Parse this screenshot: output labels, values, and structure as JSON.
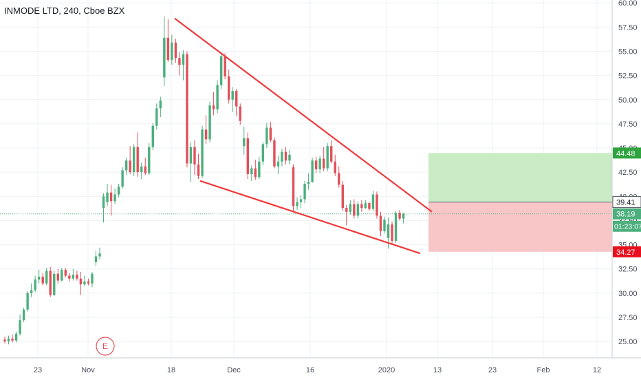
{
  "header": {
    "symbol_title": "INMODE LTD, 240, Cboe BZX"
  },
  "colors": {
    "up": "#4caf7d",
    "down": "#e0505a",
    "trendline": "#f0393a",
    "target_zone": "#c9ecc4",
    "stop_zone": "#f8c6c6",
    "grid": "#eef0f3",
    "axis_text": "#4a4f5c",
    "target_label_bg": "#2ea33e",
    "stop_label_bg": "#e8101d",
    "current_label_bg": "#4caf7d",
    "entry_label_bg": "#ffffff"
  },
  "chart_data": {
    "type": "candlestick",
    "title": "INMODE LTD, 240, Cboe BZX",
    "y_axis": {
      "ylim": [
        23.3,
        60.3
      ],
      "ticks": [
        "25.00",
        "27.50",
        "30.00",
        "32.50",
        "35.00",
        "37.50",
        "40.00",
        "42.50",
        "45.00",
        "47.50",
        "50.00",
        "52.50",
        "55.00",
        "57.50",
        "60.00"
      ],
      "position": "right"
    },
    "x_axis": {
      "ticks": [
        "23",
        "Nov",
        "18",
        "Dec",
        "16",
        "2020",
        "13",
        "23",
        "Feb",
        "12"
      ]
    },
    "grid": true,
    "candles": [
      [
        25.2,
        25.5,
        24.8,
        25.0
      ],
      [
        25.0,
        25.6,
        24.7,
        25.3
      ],
      [
        25.3,
        25.7,
        24.9,
        25.1
      ],
      [
        25.1,
        26.0,
        24.9,
        25.8
      ],
      [
        25.8,
        27.8,
        25.6,
        27.2
      ],
      [
        27.2,
        28.5,
        27.0,
        28.3
      ],
      [
        28.3,
        30.2,
        28.1,
        30.0
      ],
      [
        30.0,
        31.0,
        29.6,
        30.3
      ],
      [
        30.3,
        31.8,
        30.1,
        31.4
      ],
      [
        31.4,
        32.4,
        31.0,
        31.7
      ],
      [
        31.7,
        32.1,
        30.8,
        31.0
      ],
      [
        31.0,
        32.6,
        30.8,
        32.3
      ],
      [
        32.3,
        32.7,
        29.6,
        29.8
      ],
      [
        29.8,
        32.3,
        29.7,
        32.0
      ],
      [
        32.0,
        32.5,
        31.0,
        31.3
      ],
      [
        31.3,
        32.6,
        31.2,
        32.4
      ],
      [
        32.4,
        32.6,
        31.6,
        31.8
      ],
      [
        31.8,
        32.1,
        31.2,
        31.5
      ],
      [
        31.5,
        32.5,
        31.3,
        31.9
      ],
      [
        31.9,
        32.3,
        31.3,
        31.5
      ],
      [
        31.5,
        32.2,
        29.8,
        30.9
      ],
      [
        30.9,
        31.8,
        30.7,
        31.2
      ],
      [
        31.2,
        31.5,
        30.8,
        31.0
      ],
      [
        31.0,
        32.2,
        30.6,
        32.0
      ],
      [
        33.2,
        34.4,
        32.8,
        33.8
      ],
      [
        33.8,
        34.7,
        33.5,
        34.1
      ],
      [
        38.8,
        40.3,
        37.3,
        40.0
      ],
      [
        39.4,
        41.3,
        39.0,
        40.4
      ],
      [
        40.4,
        41.2,
        38.0,
        39.5
      ],
      [
        39.5,
        40.8,
        39.2,
        40.2
      ],
      [
        40.2,
        41.3,
        39.9,
        41.0
      ],
      [
        41.0,
        43.0,
        40.8,
        42.7
      ],
      [
        42.7,
        44.0,
        42.2,
        43.7
      ],
      [
        43.7,
        45.2,
        42.3,
        42.5
      ],
      [
        42.5,
        45.4,
        42.1,
        45.1
      ],
      [
        45.1,
        46.6,
        42.0,
        42.5
      ],
      [
        42.5,
        43.5,
        41.8,
        43.1
      ],
      [
        43.1,
        44.0,
        42.2,
        42.4
      ],
      [
        42.4,
        45.5,
        42.2,
        45.1
      ],
      [
        45.1,
        47.6,
        44.8,
        47.3
      ],
      [
        47.3,
        49.6,
        46.9,
        49.1
      ],
      [
        49.1,
        50.3,
        48.2,
        49.9
      ],
      [
        52.3,
        58.6,
        51.4,
        56.4
      ],
      [
        56.4,
        58.3,
        53.9,
        54.1
      ],
      [
        54.1,
        56.7,
        53.6,
        55.9
      ],
      [
        55.9,
        56.3,
        53.8,
        54.3
      ],
      [
        54.3,
        54.9,
        52.5,
        53.6
      ],
      [
        53.6,
        55.1,
        52.0,
        54.7
      ],
      [
        54.7,
        55.0,
        43.0,
        43.4
      ],
      [
        43.4,
        45.6,
        41.5,
        45.1
      ],
      [
        45.1,
        45.8,
        42.2,
        43.3
      ],
      [
        43.3,
        44.4,
        41.8,
        42.1
      ],
      [
        42.1,
        47.3,
        41.9,
        46.9
      ],
      [
        46.9,
        48.4,
        45.4,
        45.9
      ],
      [
        45.9,
        49.8,
        45.6,
        49.4
      ],
      [
        49.4,
        50.8,
        48.4,
        49.0
      ],
      [
        49.0,
        52.0,
        48.6,
        51.5
      ],
      [
        51.5,
        54.8,
        51.1,
        54.5
      ],
      [
        54.5,
        54.8,
        52.1,
        52.4
      ],
      [
        52.4,
        53.1,
        49.6,
        50.0
      ],
      [
        50.0,
        51.3,
        48.7,
        50.9
      ],
      [
        50.9,
        51.1,
        48.3,
        49.3
      ],
      [
        49.3,
        49.6,
        47.4,
        47.8
      ],
      [
        45.2,
        47.2,
        44.3,
        46.0
      ],
      [
        46.0,
        46.6,
        41.8,
        42.3
      ],
      [
        42.3,
        43.2,
        41.6,
        42.9
      ],
      [
        42.9,
        43.8,
        41.7,
        42.0
      ],
      [
        42.0,
        44.1,
        41.8,
        43.6
      ],
      [
        43.6,
        45.6,
        43.2,
        45.4
      ],
      [
        45.4,
        47.6,
        45.0,
        47.1
      ],
      [
        47.1,
        47.7,
        45.6,
        45.8
      ],
      [
        45.8,
        46.1,
        42.9,
        43.1
      ],
      [
        43.1,
        44.2,
        42.3,
        43.6
      ],
      [
        43.6,
        44.9,
        43.1,
        44.6
      ],
      [
        44.6,
        45.1,
        43.3,
        43.7
      ],
      [
        43.7,
        44.8,
        43.3,
        44.3
      ],
      [
        43.0,
        43.3,
        38.4,
        39.0
      ],
      [
        39.0,
        39.9,
        38.6,
        39.4
      ],
      [
        39.4,
        40.1,
        38.8,
        39.7
      ],
      [
        39.7,
        41.6,
        39.3,
        41.3
      ],
      [
        41.3,
        42.4,
        40.7,
        41.5
      ],
      [
        41.5,
        44.0,
        41.4,
        43.7
      ],
      [
        43.7,
        44.1,
        42.4,
        42.8
      ],
      [
        42.8,
        44.2,
        42.4,
        43.9
      ],
      [
        43.9,
        45.1,
        42.6,
        42.9
      ],
      [
        42.9,
        45.5,
        42.6,
        45.2
      ],
      [
        45.2,
        45.8,
        43.4,
        43.6
      ],
      [
        43.6,
        44.3,
        42.1,
        42.4
      ],
      [
        42.4,
        43.1,
        40.9,
        41.2
      ],
      [
        41.2,
        41.6,
        38.5,
        38.8
      ],
      [
        38.8,
        39.1,
        37.0,
        38.4
      ],
      [
        38.4,
        39.6,
        38.1,
        39.2
      ],
      [
        39.2,
        39.7,
        37.7,
        38.0
      ],
      [
        38.0,
        39.5,
        37.7,
        39.2
      ],
      [
        39.2,
        39.6,
        38.4,
        38.8
      ],
      [
        38.8,
        39.6,
        38.7,
        39.3
      ],
      [
        39.3,
        39.4,
        38.5,
        38.7
      ],
      [
        38.7,
        40.6,
        38.5,
        40.2
      ],
      [
        40.2,
        40.5,
        37.7,
        38.0
      ],
      [
        38.0,
        38.4,
        35.9,
        36.4
      ],
      [
        36.4,
        37.9,
        36.2,
        37.6
      ],
      [
        35.7,
        37.8,
        34.6,
        37.1
      ],
      [
        37.1,
        37.4,
        35.0,
        35.4
      ],
      [
        35.4,
        38.5,
        35.2,
        38.3
      ],
      [
        38.3,
        38.6,
        37.5,
        37.7
      ],
      [
        37.7,
        38.3,
        37.2,
        38.2
      ]
    ],
    "annotations": {
      "trendline_upper": "resistance",
      "trendline_lower": "support",
      "last_price": 38.19,
      "position_entry": 39.41,
      "position_target": 44.48,
      "position_stop": 34.27,
      "earnings_marker": "E"
    }
  },
  "labels": {
    "target_price": "44.48",
    "entry_price": "39.41",
    "current_price": "38.19",
    "countdown": "01:23:07",
    "stop_price": "34.27",
    "earnings": "E"
  }
}
